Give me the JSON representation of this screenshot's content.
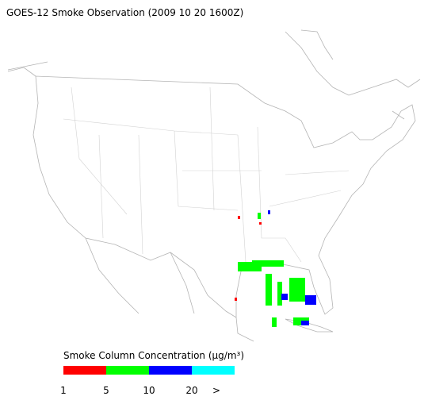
{
  "title": "GOES-12 Smoke Observation (2009 10 20  1600Z)",
  "legend": {
    "title": "Smoke Column Concentration (μg/m³)",
    "colors": [
      "#ff0000",
      "#00ff00",
      "#0000ff",
      "#00ffff"
    ],
    "labels": [
      "1",
      "5",
      "10",
      "20",
      ">"
    ]
  }
}
